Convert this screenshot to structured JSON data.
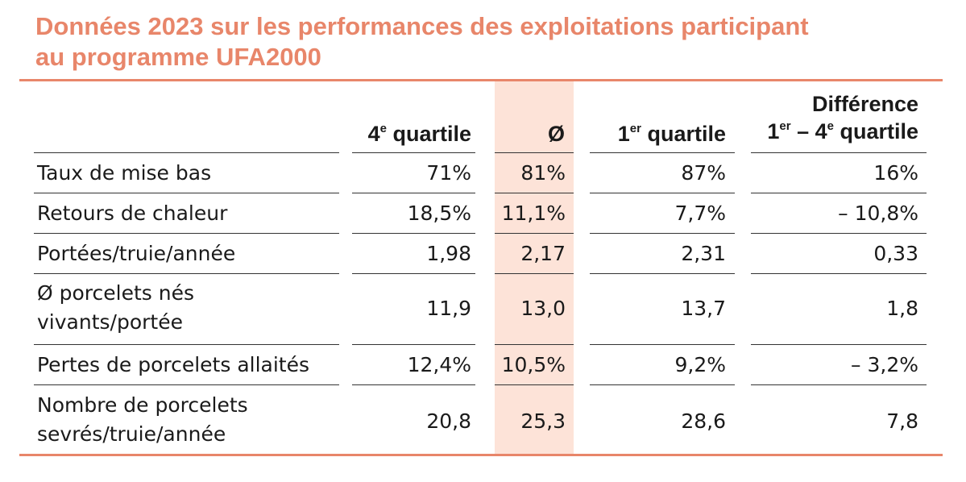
{
  "title": {
    "line1": "Données 2023 sur les performances des exploitations participant",
    "line2": "au programme UFA2000"
  },
  "headers": {
    "q4": {
      "num": "4",
      "sup": "e",
      "text": " quartile"
    },
    "avg": "Ø",
    "q1": {
      "num": "1",
      "sup": "er",
      "text": " quartile"
    },
    "diff": {
      "line1": "Différence",
      "a": "1",
      "a_sup": "er",
      "mid": " – 4",
      "b_sup": "e",
      "end": " quartile"
    }
  },
  "rows": [
    {
      "label": [
        "Taux de mise bas"
      ],
      "q4": "71%",
      "avg": "81%",
      "q1": "87%",
      "diff": "16%"
    },
    {
      "label": [
        "Retours de chaleur"
      ],
      "q4": "18,5%",
      "avg": "11,1%",
      "q1": "7,7%",
      "diff": "– 10,8%"
    },
    {
      "label": [
        "Portées/truie/année"
      ],
      "q4": "1,98",
      "avg": "2,17",
      "q1": "2,31",
      "diff": "0,33"
    },
    {
      "label": [
        "Ø porcelets nés",
        "vivants/portée"
      ],
      "q4": "11,9",
      "avg": "13,0",
      "q1": "13,7",
      "diff": "1,8"
    },
    {
      "label": [
        "Pertes de porcelets allaités"
      ],
      "q4": "12,4%",
      "avg": "10,5%",
      "q1": "9,2%",
      "diff": "– 3,2%"
    },
    {
      "label": [
        "Nombre de porcelets",
        "sevrés/truie/année"
      ],
      "q4": "20,8",
      "avg": "25,3",
      "q1": "28,6",
      "diff": "7,8"
    }
  ],
  "colors": {
    "accent": "#e8866a",
    "band": "#fde3d8"
  }
}
